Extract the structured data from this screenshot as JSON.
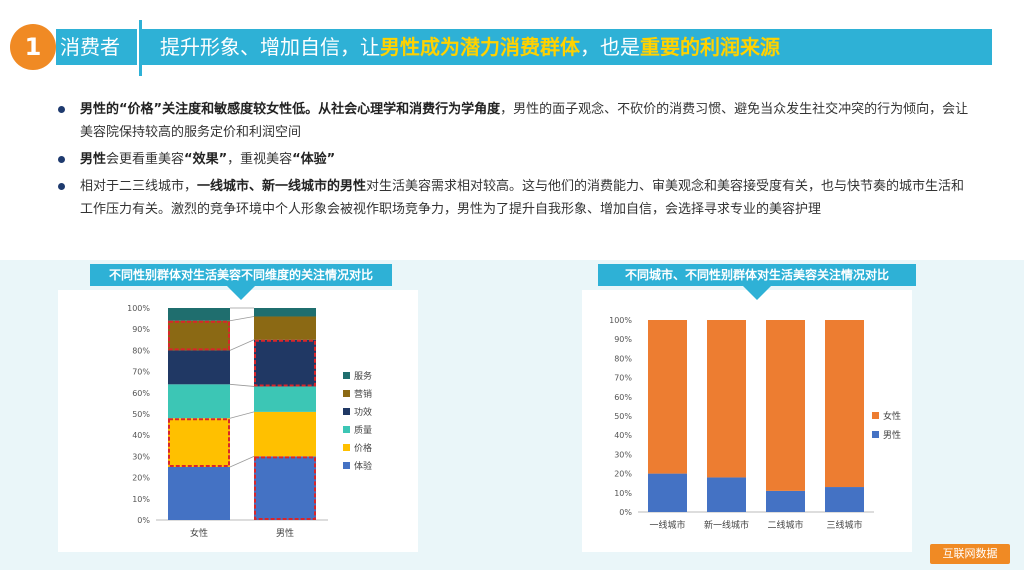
{
  "header": {
    "number": "1",
    "category": "消费者",
    "title_parts": [
      {
        "text": "提升形象、增加自信，让",
        "highlight": false
      },
      {
        "text": "男性成为潜力消费群体",
        "highlight": true
      },
      {
        "text": "，也是",
        "highlight": false
      },
      {
        "text": "重要的利润来源",
        "highlight": true
      }
    ]
  },
  "bullets": [
    [
      {
        "text": "男性的“价格”关注度和敏感度较女性低。从社会心理学和消费行为学角度",
        "bold": true
      },
      {
        "text": "，男性的面子观念、不砍价的消费习惯、避免当众发生社交冲突的行为倾向，会让美容院保持较高的服务定价和利润空间",
        "bold": false
      }
    ],
    [
      {
        "text": "男性",
        "bold": true
      },
      {
        "text": "会更看重美容",
        "bold": false
      },
      {
        "text": "“效果”",
        "bold": true
      },
      {
        "text": "，重视美容",
        "bold": false
      },
      {
        "text": "“体验”",
        "bold": true
      }
    ],
    [
      {
        "text": "相对于二三线城市，",
        "bold": false
      },
      {
        "text": "一线城市、新一线城市的男性",
        "bold": true
      },
      {
        "text": "对生活美容需求相对较高。这与他们的消费能力、审美观念和美容接受度有关，也与快节奏的城市生活和工作压力有关。激烈的竞争环境中个人形象会被视作职场竞争力，男性为了提升自我形象、增加自信，会选择寻求专业的美容护理",
        "bold": false
      }
    ]
  ],
  "colors": {
    "accent": "#2eb1d6",
    "badge": "#f08a24",
    "highlight": "#ffd200",
    "dash": "#d9262a"
  },
  "chart_data": [
    {
      "type": "bar",
      "stacked": true,
      "title": "不同性别群体对生活美容不同维度的关注情况对比",
      "categories": [
        "女性",
        "男性"
      ],
      "ylim": [
        0,
        100
      ],
      "yticks": [
        "0%",
        "10%",
        "20%",
        "30%",
        "40%",
        "50%",
        "60%",
        "70%",
        "80%",
        "90%",
        "100%"
      ],
      "legend_position": "right",
      "series": [
        {
          "name": "体验",
          "color": "#4472c4",
          "values": [
            25,
            30
          ]
        },
        {
          "name": "价格",
          "color": "#ffc000",
          "values": [
            23,
            21
          ]
        },
        {
          "name": "质量",
          "color": "#3cc6b5",
          "values": [
            16,
            12
          ]
        },
        {
          "name": "功效",
          "color": "#203864",
          "values": [
            16,
            22
          ]
        },
        {
          "name": "营销",
          "color": "#8b6914",
          "values": [
            14,
            11
          ]
        },
        {
          "name": "服务",
          "color": "#1f6e6e",
          "values": [
            6,
            4
          ]
        }
      ],
      "highlighted": {
        "女性": [
          "价格",
          "营销"
        ],
        "男性": [
          "体验",
          "功效"
        ]
      }
    },
    {
      "type": "bar",
      "stacked": true,
      "title": "不同城市、不同性别群体对生活美容关注情况对比",
      "categories": [
        "一线城市",
        "新一线城市",
        "二线城市",
        "三线城市"
      ],
      "ylim": [
        0,
        100
      ],
      "yticks": [
        "0%",
        "10%",
        "20%",
        "30%",
        "40%",
        "50%",
        "60%",
        "70%",
        "80%",
        "90%",
        "100%"
      ],
      "legend_position": "right",
      "series": [
        {
          "name": "男性",
          "color": "#4472c4",
          "values": [
            20,
            18,
            11,
            13
          ]
        },
        {
          "name": "女性",
          "color": "#ed7d31",
          "values": [
            80,
            82,
            89,
            87
          ]
        }
      ]
    }
  ],
  "footer": {
    "source": "互联网数据"
  }
}
